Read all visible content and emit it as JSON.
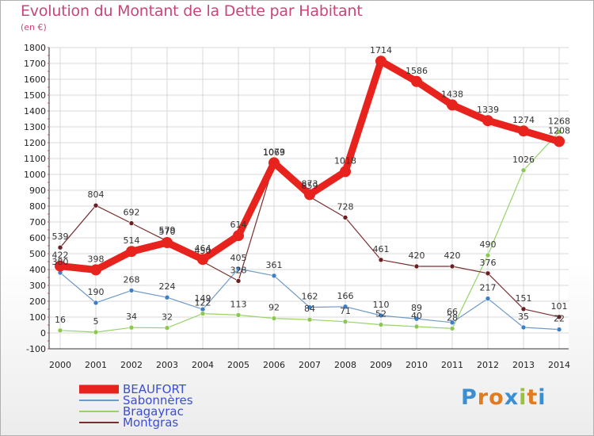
{
  "header": {
    "title": "Evolution du Montant de la Dette par Habitant",
    "unit": "(en €)"
  },
  "logo": {
    "letters": [
      "P",
      "r",
      "o",
      "x",
      "i",
      "t",
      "i"
    ],
    "colors": [
      "#3b8fd1",
      "#e07b1f",
      "#e07b1f",
      "#3b8fd1",
      "#9ac23c",
      "#e07b1f",
      "#3b8fd1"
    ]
  },
  "chart_data": {
    "type": "line",
    "title": "Evolution du Montant de la Dette par Habitant",
    "ylabel": "(en €)",
    "xlabel": "",
    "x": [
      "2000",
      "2001",
      "2002",
      "2003",
      "2004",
      "2005",
      "2006",
      "2007",
      "2008",
      "2009",
      "2010",
      "2011",
      "2012",
      "2013",
      "2014"
    ],
    "ylim": [
      -100,
      1800
    ],
    "yticks": [
      "-100",
      "0",
      "100",
      "200",
      "300",
      "400",
      "500",
      "600",
      "700",
      "800",
      "900",
      "1000",
      "1100",
      "1200",
      "1300",
      "1400",
      "1500",
      "1600",
      "1700",
      "1800"
    ],
    "grid": true,
    "legend_position": "bottom-left",
    "series": [
      {
        "name": "BEAUFORT",
        "color": "#e8231e",
        "values": [
          422,
          398,
          514,
          570,
          464,
          614,
          1073,
          873,
          1018,
          1714,
          1586,
          1438,
          1339,
          1274,
          1208
        ],
        "labels": [
          "422",
          "398",
          "514",
          "570",
          "464",
          "614",
          "1073",
          "873",
          "1018",
          "1714",
          "1586",
          "1438",
          "1339",
          "1274",
          "1208"
        ]
      },
      {
        "name": "Sabonnères",
        "color": "#6f9ac8",
        "values": [
          380,
          190,
          268,
          224,
          149,
          405,
          361,
          162,
          166,
          110,
          89,
          66,
          217,
          35,
          22
        ],
        "labels": [
          "380",
          "190",
          "268",
          "224",
          "149",
          "405",
          "361",
          "162",
          "166",
          "110",
          "89",
          "66",
          "217",
          "35",
          "22"
        ]
      },
      {
        "name": "Bragayrac",
        "color": "#96d36a",
        "values": [
          16,
          5,
          34,
          32,
          122,
          113,
          92,
          84,
          71,
          52,
          40,
          28,
          490,
          1026,
          1268
        ],
        "labels": [
          "16",
          "5",
          "34",
          "32",
          "122",
          "113",
          "92",
          "84",
          "71",
          "52",
          "40",
          "28",
          "490",
          "1026",
          "1268"
        ]
      },
      {
        "name": "Montgras",
        "color": "#7a2e30",
        "values": [
          539,
          804,
          692,
          579,
          450,
          328,
          1069,
          859,
          728,
          461,
          420,
          420,
          376,
          151,
          101
        ],
        "labels": [
          "539",
          "804",
          "692",
          "579",
          "450",
          "328",
          "1069",
          "859",
          "728",
          "461",
          "420",
          "420",
          "376",
          "151",
          "101"
        ]
      }
    ]
  }
}
